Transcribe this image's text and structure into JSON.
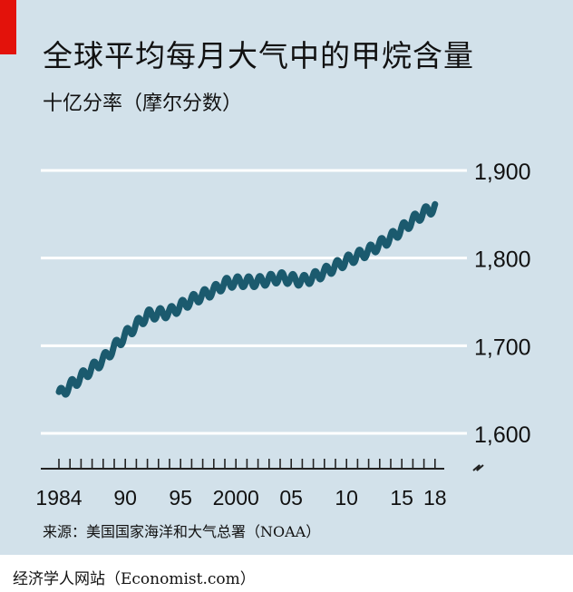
{
  "accent_color": "#e3120b",
  "background_color": "#d2e1ea",
  "line_color": "#1b5a6e",
  "source": "来源：美国国家海洋和大气总署（NOAA）",
  "credit": "经济学人网站（Economist.com）",
  "chart_data": {
    "type": "line",
    "title": "全球平均每月大气中的甲烷含量",
    "subtitle": "十亿分率（摩尔分数）",
    "ylim": [
      1600,
      1900
    ],
    "yticks": [
      1600,
      1700,
      1800,
      1900
    ],
    "ytick_labels": [
      "1,600",
      "1,700",
      "1,800",
      "1,900"
    ],
    "axis_break": true,
    "xlim": [
      1983.6,
      2018.5
    ],
    "xtick_labels": [
      {
        "x": 1984,
        "label": "1984"
      },
      {
        "x": 1990,
        "label": "90"
      },
      {
        "x": 1995,
        "label": "95"
      },
      {
        "x": 2000,
        "label": "2000"
      },
      {
        "x": 2005,
        "label": "05"
      },
      {
        "x": 2010,
        "label": "10"
      },
      {
        "x": 2015,
        "label": "15"
      },
      {
        "x": 2018,
        "label": "18"
      }
    ],
    "grid": "horizontal",
    "series": [
      {
        "x": [
          1984,
          1986,
          1988,
          1990,
          1992,
          1994,
          1996,
          1998,
          1999,
          2000,
          2002,
          2004,
          2006,
          2007,
          2008,
          2010,
          2012,
          2014,
          2016,
          2017,
          2018
        ],
        "values": [
          1644,
          1664,
          1684,
          1712,
          1735,
          1738,
          1752,
          1763,
          1771,
          1773,
          1773,
          1778,
          1774,
          1778,
          1784,
          1797,
          1808,
          1823,
          1843,
          1852,
          1858
        ],
        "seasonal_amplitude": 6
      }
    ]
  }
}
